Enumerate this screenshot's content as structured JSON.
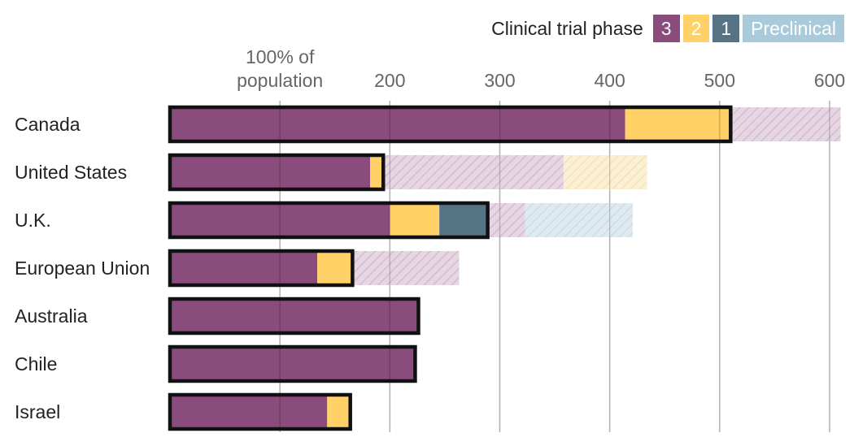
{
  "legend": {
    "title": "Clinical trial phase",
    "items": [
      {
        "key": "phase3",
        "label": "3",
        "color": "#8a4b7d",
        "text_color": "#ffffff"
      },
      {
        "key": "phase2",
        "label": "2",
        "color": "#ffd166",
        "text_color": "#ffffff"
      },
      {
        "key": "phase1",
        "label": "1",
        "color": "#557384",
        "text_color": "#ffffff"
      },
      {
        "key": "preclinical",
        "label": "Preclinical",
        "color": "#a9cadb",
        "text_color": "#ffffff"
      }
    ]
  },
  "chart_data": {
    "type": "bar",
    "orientation": "horizontal",
    "stacked": true,
    "xlim": [
      0,
      600
    ],
    "x_ticks": [
      {
        "value": 100,
        "label_lines": [
          "100% of",
          "population"
        ]
      },
      {
        "value": 200,
        "label_lines": [
          "200"
        ]
      },
      {
        "value": 300,
        "label_lines": [
          "300"
        ]
      },
      {
        "value": 400,
        "label_lines": [
          "400"
        ]
      },
      {
        "value": 500,
        "label_lines": [
          "500"
        ]
      },
      {
        "value": 600,
        "label_lines": [
          "600"
        ]
      }
    ],
    "grid": true,
    "legend_position": "top-right",
    "categories": [
      "Canada",
      "United States",
      "U.K.",
      "European Union",
      "Australia",
      "Chile",
      "Israel"
    ],
    "series": [
      {
        "name": "3",
        "color": "#8a4b7d",
        "values": [
          414,
          182,
          200,
          134,
          226,
          223,
          143
        ]
      },
      {
        "name": "2",
        "color": "#ffd166",
        "values": [
          96,
          12,
          45,
          32,
          0,
          0,
          21
        ]
      },
      {
        "name": "1",
        "color": "#557384",
        "values": [
          0,
          0,
          44,
          0,
          0,
          0,
          0
        ]
      },
      {
        "name": "Preclinical",
        "color": "#a9cadb",
        "values": [
          0,
          0,
          0,
          0,
          0,
          0,
          0
        ]
      }
    ],
    "additional_segments": [
      {
        "values_by_phase": {
          "3": 100,
          "2": 0,
          "1": 0,
          "Preclinical": 0
        },
        "category": "Canada"
      },
      {
        "values_by_phase": {
          "3": 164,
          "2": 76,
          "1": 0,
          "Preclinical": 0
        },
        "category": "United States"
      },
      {
        "values_by_phase": {
          "3": 34,
          "2": 0,
          "1": 0,
          "Preclinical": 98
        },
        "category": "U.K."
      },
      {
        "values_by_phase": {
          "3": 97,
          "2": 0,
          "1": 0,
          "Preclinical": 0
        },
        "category": "European Union"
      },
      {
        "values_by_phase": {
          "3": 0,
          "2": 0,
          "1": 0,
          "Preclinical": 0
        },
        "category": "Australia"
      },
      {
        "values_by_phase": {
          "3": 0,
          "2": 0,
          "1": 0,
          "Preclinical": 0
        },
        "category": "Chile"
      },
      {
        "values_by_phase": {
          "3": 0,
          "2": 0,
          "1": 0,
          "Preclinical": 0
        },
        "category": "Israel"
      }
    ]
  }
}
